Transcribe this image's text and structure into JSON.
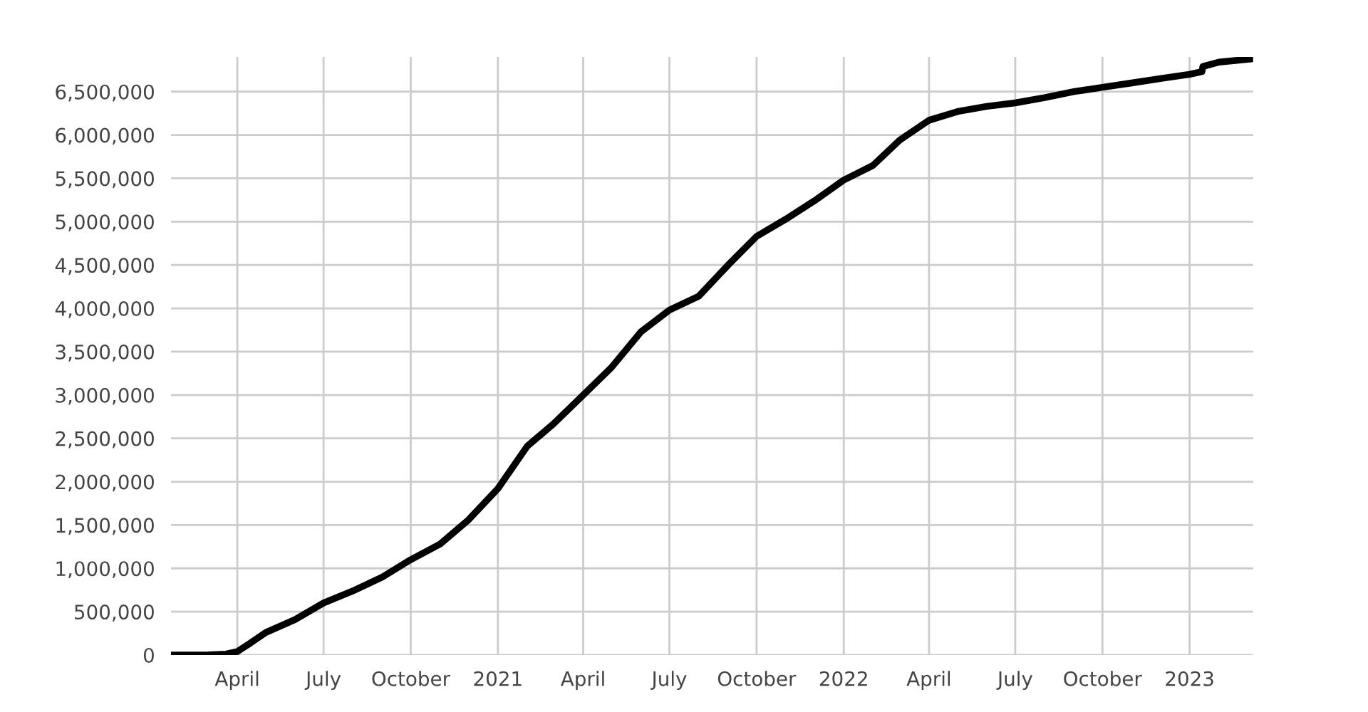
{
  "chart_data": {
    "type": "line",
    "x": [
      "2020-01-22",
      "2020-03-01",
      "2020-03-20",
      "2020-04-01",
      "2020-04-15",
      "2020-05-01",
      "2020-06-01",
      "2020-07-01",
      "2020-08-01",
      "2020-09-01",
      "2020-10-01",
      "2020-11-01",
      "2020-12-01",
      "2021-01-01",
      "2021-02-01",
      "2021-03-01",
      "2021-04-01",
      "2021-05-01",
      "2021-06-01",
      "2021-07-01",
      "2021-08-01",
      "2021-09-01",
      "2021-10-01",
      "2021-11-01",
      "2021-12-01",
      "2022-01-01",
      "2022-02-01",
      "2022-03-01",
      "2022-04-01",
      "2022-05-01",
      "2022-06-01",
      "2022-07-01",
      "2022-08-01",
      "2022-09-01",
      "2022-10-01",
      "2022-11-01",
      "2022-12-01",
      "2023-01-01",
      "2023-01-14",
      "2023-01-15",
      "2023-02-01",
      "2023-03-09"
    ],
    "series": [
      {
        "color": "#000000",
        "values": [
          0,
          3000,
          11000,
          40000,
          140000,
          260000,
          410000,
          600000,
          740000,
          900000,
          1100000,
          1280000,
          1560000,
          1920000,
          2410000,
          2670000,
          3000000,
          3320000,
          3730000,
          3980000,
          4140000,
          4500000,
          4830000,
          5030000,
          5240000,
          5480000,
          5650000,
          5940000,
          6170000,
          6270000,
          6330000,
          6370000,
          6430000,
          6500000,
          6550000,
          6600000,
          6650000,
          6700000,
          6730000,
          6790000,
          6840000,
          6880000
        ]
      }
    ],
    "xlim": [
      "2020-01-22",
      "2023-03-09"
    ],
    "xticks": [
      {
        "value": "2020-04-01",
        "label": "April"
      },
      {
        "value": "2020-07-01",
        "label": "July"
      },
      {
        "value": "2020-10-01",
        "label": "October"
      },
      {
        "value": "2021-01-01",
        "label": "2021"
      },
      {
        "value": "2021-04-01",
        "label": "April"
      },
      {
        "value": "2021-07-01",
        "label": "July"
      },
      {
        "value": "2021-10-01",
        "label": "October"
      },
      {
        "value": "2022-01-01",
        "label": "2022"
      },
      {
        "value": "2022-04-01",
        "label": "April"
      },
      {
        "value": "2022-07-01",
        "label": "July"
      },
      {
        "value": "2022-10-01",
        "label": "October"
      },
      {
        "value": "2023-01-01",
        "label": "2023"
      }
    ],
    "ylim": [
      0,
      6900000
    ],
    "yticks": [
      {
        "value": 0,
        "label": "0"
      },
      {
        "value": 500000,
        "label": "500,000"
      },
      {
        "value": 1000000,
        "label": "1,000,000"
      },
      {
        "value": 1500000,
        "label": "1,500,000"
      },
      {
        "value": 2000000,
        "label": "2,000,000"
      },
      {
        "value": 2500000,
        "label": "2,500,000"
      },
      {
        "value": 3000000,
        "label": "3,000,000"
      },
      {
        "value": 3500000,
        "label": "3,500,000"
      },
      {
        "value": 4000000,
        "label": "4,000,000"
      },
      {
        "value": 4500000,
        "label": "4,500,000"
      },
      {
        "value": 5000000,
        "label": "5,000,000"
      },
      {
        "value": 5500000,
        "label": "5,500,000"
      },
      {
        "value": 6000000,
        "label": "6,000,000"
      },
      {
        "value": 6500000,
        "label": "6,500,000"
      }
    ],
    "grid": true,
    "line_style": "solid"
  }
}
